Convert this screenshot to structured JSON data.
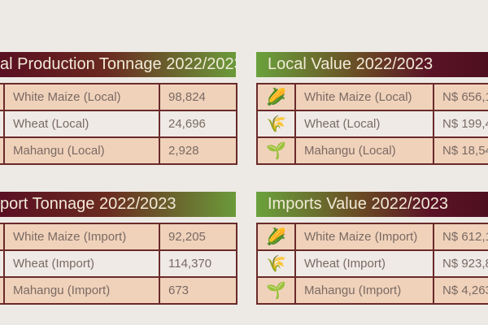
{
  "panels": [
    {
      "title": "al Production Tonnage  2022/2023",
      "rows": [
        {
          "label": "White Maize (Local)",
          "value": "98,824",
          "icon": "maize-icon"
        },
        {
          "label": "Wheat (Local)",
          "value": "24,696",
          "icon": "wheat-icon"
        },
        {
          "label": "Mahangu (Local)",
          "value": "2,928",
          "icon": "mahangu-icon"
        }
      ]
    },
    {
      "title": "Local Value 2022/2023",
      "rows": [
        {
          "label": "White Maize (Local)",
          "value": "N$ 656,1",
          "icon": "maize-icon"
        },
        {
          "label": "Wheat (Local)",
          "value": "N$ 199,4",
          "icon": "wheat-icon"
        },
        {
          "label": "Mahangu (Local)",
          "value": "N$ 18,54",
          "icon": "mahangu-icon"
        }
      ]
    },
    {
      "title": "port Tonnage 2022/2023",
      "rows": [
        {
          "label": "White Maize (Import)",
          "value": "92,205",
          "icon": "maize-icon"
        },
        {
          "label": "Wheat (Import)",
          "value": "114,370",
          "icon": "wheat-icon"
        },
        {
          "label": "Mahangu (Import)",
          "value": "673",
          "icon": "mahangu-icon"
        }
      ]
    },
    {
      "title": "Imports Value 2022/2023",
      "rows": [
        {
          "label": "White Maize (Import)",
          "value": "N$ 612,1",
          "icon": "maize-icon"
        },
        {
          "label": "Wheat (Import)",
          "value": "N$ 923,8",
          "icon": "wheat-icon"
        },
        {
          "label": "Mahangu (Import)",
          "value": "N$ 4,263",
          "icon": "mahangu-icon"
        }
      ]
    }
  ],
  "colors": {
    "maroon": "#5a0f22",
    "green": "#6aa23c",
    "row_peach": "#f0d2bb",
    "row_light": "#efeae6"
  }
}
